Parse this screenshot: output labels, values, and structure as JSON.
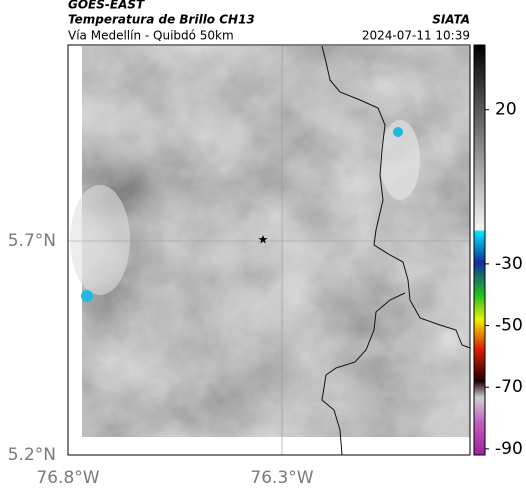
{
  "header": {
    "source": "GOES-EAST",
    "title": "Temperatura de Brillo CH13",
    "subtitle": "Vía Medellín - Quibdó 50km",
    "agency": "SIATA",
    "datetime": "2024-07-11 10:39"
  },
  "map": {
    "lat_ticks": [
      "5.7°N",
      "5.2°N"
    ],
    "lon_ticks": [
      "76.8°W",
      "76.3°W"
    ]
  },
  "colorbar": {
    "range": [
      -92,
      41
    ],
    "ticks": [
      20,
      -30,
      -50,
      -70,
      -90
    ]
  }
}
